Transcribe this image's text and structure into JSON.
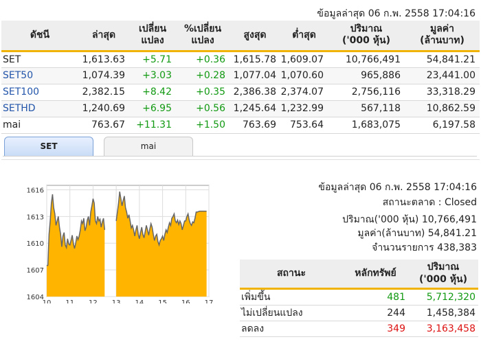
{
  "top_timestamp": "ข้อมูลล่าสุด 06 ก.พ. 2558 17:04:16",
  "index_table": {
    "headers": [
      {
        "line1": "ดัชนี",
        "line2": ""
      },
      {
        "line1": "ล่าสุด",
        "line2": ""
      },
      {
        "line1": "เปลี่ยน",
        "line2": "แปลง"
      },
      {
        "line1": "%เปลี่ยน",
        "line2": "แปลง"
      },
      {
        "line1": "สูงสุด",
        "line2": ""
      },
      {
        "line1": "ต่ำสุด",
        "line2": ""
      },
      {
        "line1": "ปริมาณ",
        "line2": "('000 หุ้น)"
      },
      {
        "line1": "มูลค่า",
        "line2": "(ล้านบาท)"
      }
    ],
    "rows": [
      {
        "name": "SET",
        "link": false,
        "last": "1,613.63",
        "change": "+5.71",
        "pct": "+0.36",
        "high": "1,615.78",
        "low": "1,609.07",
        "volume": "10,766,491",
        "value": "54,841.21"
      },
      {
        "name": "SET50",
        "link": true,
        "last": "1,074.39",
        "change": "+3.03",
        "pct": "+0.28",
        "high": "1,077.04",
        "low": "1,070.60",
        "volume": "965,886",
        "value": "23,441.00"
      },
      {
        "name": "SET100",
        "link": true,
        "last": "2,382.15",
        "change": "+8.42",
        "pct": "+0.35",
        "high": "2,386.38",
        "low": "2,374.07",
        "volume": "2,756,116",
        "value": "33,318.29"
      },
      {
        "name": "SETHD",
        "link": true,
        "last": "1,240.69",
        "change": "+6.95",
        "pct": "+0.56",
        "high": "1,245.64",
        "low": "1,232.99",
        "volume": "567,118",
        "value": "10,862.59"
      },
      {
        "name": "mai",
        "link": false,
        "last": "763.67",
        "change": "+11.31",
        "pct": "+1.50",
        "high": "763.69",
        "low": "753.64",
        "volume": "1,683,075",
        "value": "6,197.58"
      }
    ]
  },
  "tabs": [
    {
      "label": "SET",
      "active": true
    },
    {
      "label": "mai",
      "active": false
    }
  ],
  "info": {
    "timestamp": "ข้อมูลล่าสุด 06 ก.พ. 2558 17:04:16",
    "market_status": "สถานะตลาด : Closed",
    "volume": "ปริมาณ('000 หุ้น) 10,766,491",
    "value": "มูลค่า(ล้านบาท) 54,841.21",
    "transactions": "จำนวนรายการ 438,383"
  },
  "status_table": {
    "headers": [
      {
        "line1": "สถานะ",
        "line2": ""
      },
      {
        "line1": "หลักทรัพย์",
        "line2": ""
      },
      {
        "line1": "ปริมาณ",
        "line2": "('000 หุ้น)"
      }
    ],
    "rows": [
      {
        "name": "เพิ่มขึ้น",
        "count": "481",
        "volume": "5,712,320",
        "color": "#119911"
      },
      {
        "name": "ไม่เปลี่ยนแปลง",
        "count": "244",
        "volume": "1,458,384",
        "color": "#222222"
      },
      {
        "name": "ลดลง",
        "count": "349",
        "volume": "3,163,458",
        "color": "#dd1111"
      }
    ]
  },
  "chart_data": {
    "type": "area",
    "x_ticks": [
      "10",
      "11",
      "12",
      "13",
      "14",
      "15",
      "16",
      "17"
    ],
    "y_ticks": [
      "1616",
      "1613",
      "1610",
      "1607",
      "1604"
    ],
    "ylim": [
      1604,
      1616.5
    ],
    "fill_color": "#ffb400",
    "line_color": "#666666",
    "sessions": [
      {
        "x": [
          10.0,
          10.05,
          10.1,
          10.15,
          10.2,
          10.25,
          10.3,
          10.35,
          10.4,
          10.45,
          10.5,
          10.55,
          10.6,
          10.65,
          10.7,
          10.75,
          10.8,
          10.85,
          10.9,
          10.95,
          11.0,
          11.05,
          11.1,
          11.15,
          11.2,
          11.25,
          11.3,
          11.35,
          11.4,
          11.45,
          11.5,
          11.55,
          11.6,
          11.65,
          11.7,
          11.75,
          11.8,
          11.85,
          11.9,
          11.95,
          12.0,
          12.05,
          12.1,
          12.15,
          12.2,
          12.25,
          12.3,
          12.35,
          12.4,
          12.45,
          12.5
        ],
        "y": [
          1607.5,
          1607.5,
          1611.0,
          1612.5,
          1614.5,
          1615.5,
          1614.0,
          1613.3,
          1612.0,
          1612.5,
          1613.0,
          1611.8,
          1611.0,
          1609.6,
          1610.8,
          1611.2,
          1609.8,
          1609.5,
          1610.5,
          1609.9,
          1609.8,
          1610.3,
          1610.9,
          1610.0,
          1609.4,
          1610.0,
          1610.8,
          1610.4,
          1610.8,
          1611.5,
          1612.5,
          1612.2,
          1612.8,
          1611.4,
          1611.8,
          1612.6,
          1613.0,
          1612.0,
          1613.5,
          1614.2,
          1615.0,
          1614.5,
          1612.5,
          1612.2,
          1613.0,
          1612.5,
          1612.7,
          1611.8,
          1612.4,
          1612.8,
          1611.5
        ]
      },
      {
        "x": [
          13.0,
          13.05,
          13.1,
          13.15,
          13.2,
          13.25,
          13.3,
          13.35,
          13.4,
          13.45,
          13.5,
          13.55,
          13.6,
          13.65,
          13.7,
          13.75,
          13.8,
          13.85,
          13.9,
          13.95,
          14.0,
          14.05,
          14.1,
          14.15,
          14.2,
          14.25,
          14.3,
          14.35,
          14.4,
          14.45,
          14.5,
          14.55,
          14.6,
          14.65,
          14.7,
          14.75,
          14.8,
          14.85,
          14.9,
          14.95,
          15.0,
          15.05,
          15.1,
          15.15,
          15.2,
          15.25,
          15.3,
          15.35,
          15.4,
          15.45,
          15.5,
          15.55,
          15.6,
          15.65,
          15.7,
          15.75,
          15.8,
          15.85,
          15.9,
          15.95,
          16.0,
          16.05,
          16.1,
          16.15,
          16.2,
          16.25,
          16.3,
          16.35,
          16.4,
          16.45,
          16.5,
          16.6,
          16.7,
          16.8,
          16.9
        ],
        "y": [
          1612.5,
          1613.5,
          1614.5,
          1615.8,
          1615.0,
          1614.2,
          1614.8,
          1615.3,
          1614.0,
          1613.5,
          1612.8,
          1613.2,
          1612.5,
          1611.7,
          1612.0,
          1611.5,
          1610.8,
          1611.5,
          1612.0,
          1611.0,
          1610.5,
          1611.2,
          1611.8,
          1611.0,
          1610.6,
          1611.3,
          1612.0,
          1611.5,
          1610.9,
          1611.6,
          1612.2,
          1611.8,
          1611.0,
          1610.3,
          1610.8,
          1611.0,
          1610.2,
          1609.8,
          1610.3,
          1610.5,
          1610.8,
          1610.3,
          1611.0,
          1611.5,
          1611.2,
          1611.8,
          1612.3,
          1612.0,
          1612.8,
          1613.0,
          1613.3,
          1612.5,
          1612.3,
          1612.6,
          1612.1,
          1612.5,
          1612.2,
          1611.5,
          1612.0,
          1612.5,
          1612.5,
          1613.0,
          1613.3,
          1612.6,
          1612.2,
          1612.0,
          1612.4,
          1612.3,
          1612.8,
          1613.5,
          1613.5,
          1613.6,
          1613.6,
          1613.6,
          1613.6
        ]
      }
    ]
  }
}
